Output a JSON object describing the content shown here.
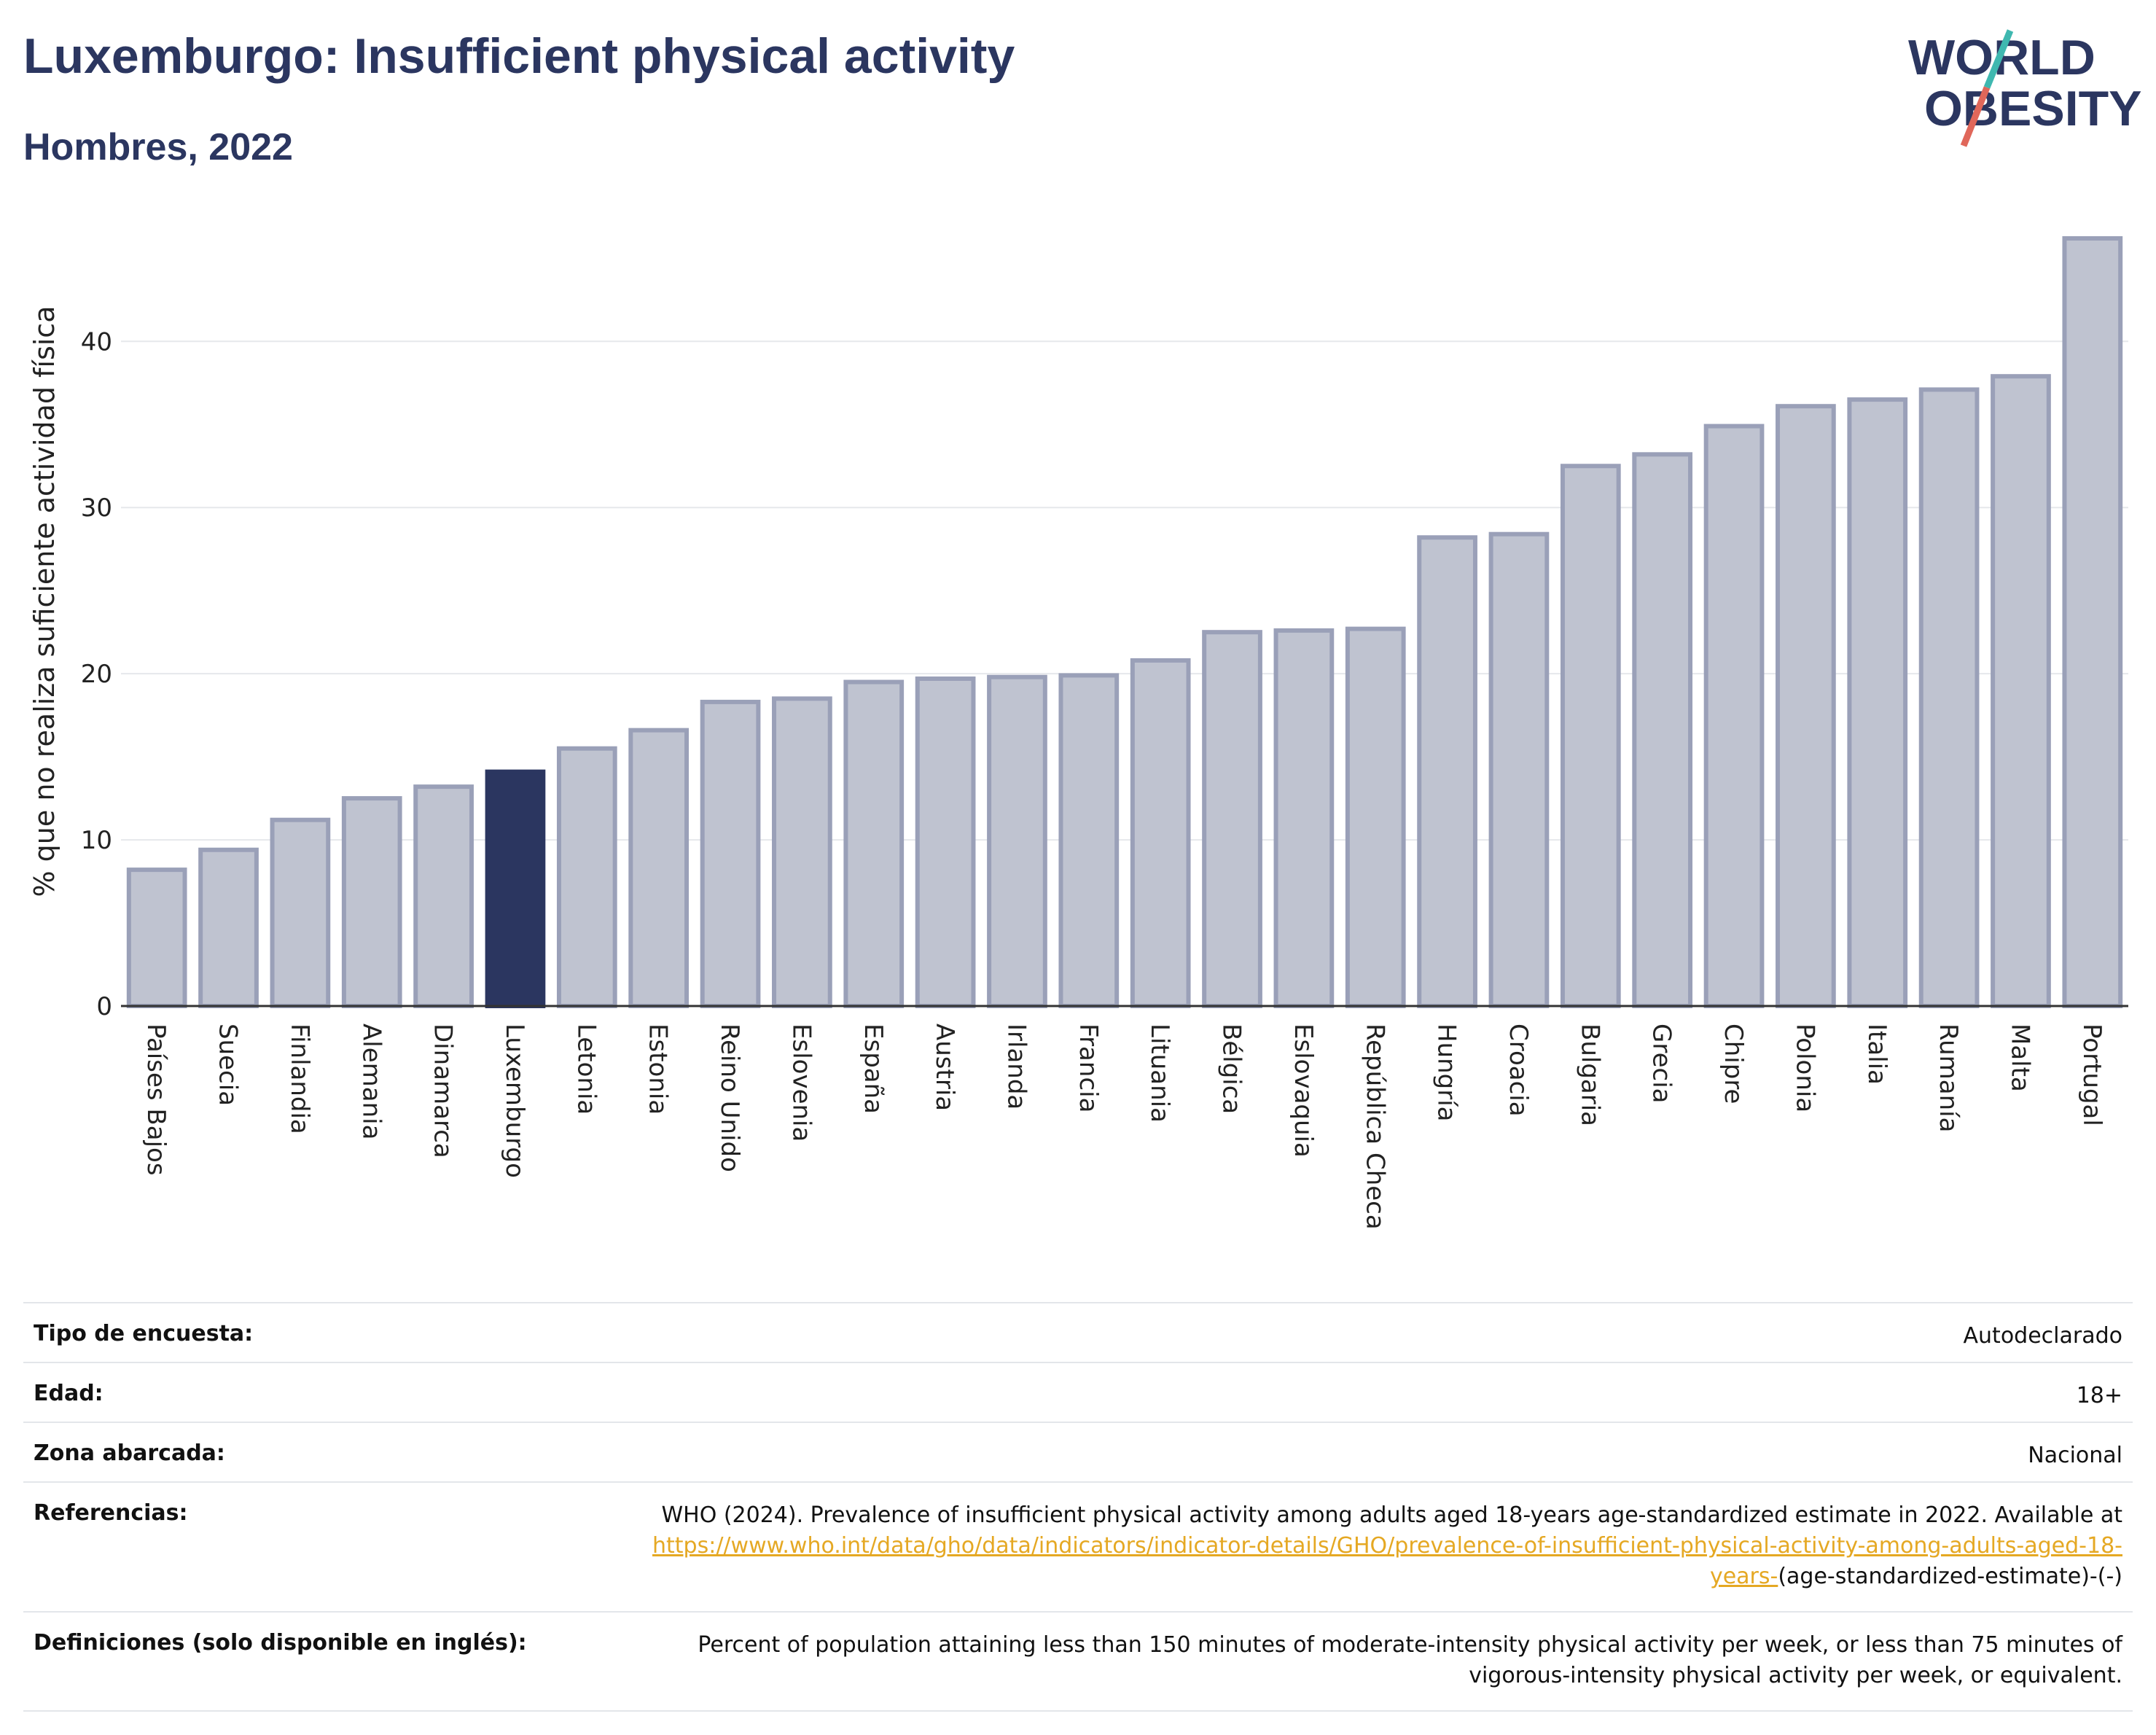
{
  "header": {
    "title": "Luxemburgo: Insufficient physical activity",
    "subtitle": "Hombres, 2022"
  },
  "logo": {
    "line1": "WORLD",
    "line2": "OBESITY",
    "colors": {
      "text": "#2b3660",
      "teal": "#3fb8b0",
      "coral": "#e0675a"
    }
  },
  "chart_data": {
    "type": "bar",
    "title": "Luxemburgo: Insufficient physical activity",
    "subtitle": "Hombres, 2022",
    "xlabel": "",
    "ylabel": "% que no realiza suficiente actividad física",
    "ylim": [
      0,
      46.2
    ],
    "yticks": [
      0,
      10,
      20,
      30,
      40
    ],
    "grid": true,
    "highlight": "Luxemburgo",
    "colors": {
      "default": "#bfc3d0",
      "default_border": "#9aa0b8",
      "highlight": "#2b3660"
    },
    "categories": [
      "Países Bajos",
      "Suecia",
      "Finlandia",
      "Alemania",
      "Dinamarca",
      "Luxemburgo",
      "Letonia",
      "Estonia",
      "Reino Unido",
      "Eslovenia",
      "España",
      "Austria",
      "Irlanda",
      "Francia",
      "Lituania",
      "Bélgica",
      "Eslovaquia",
      "República Checa",
      "Hungría",
      "Croacia",
      "Bulgaria",
      "Grecia",
      "Chipre",
      "Polonia",
      "Italia",
      "Rumanía",
      "Malta",
      "Portugal"
    ],
    "values": [
      8.2,
      9.4,
      11.2,
      12.5,
      13.2,
      14.1,
      15.5,
      16.6,
      18.3,
      18.5,
      19.5,
      19.7,
      19.8,
      19.9,
      20.8,
      22.5,
      22.6,
      22.7,
      28.2,
      28.4,
      32.5,
      33.2,
      34.9,
      36.1,
      36.5,
      37.1,
      37.9,
      46.2
    ]
  },
  "info": {
    "survey": {
      "label": "Tipo de encuesta:",
      "value": "Autodeclarado"
    },
    "age": {
      "label": "Edad:",
      "value": "18+"
    },
    "area": {
      "label": "Zona abarcada:",
      "value": "Nacional"
    },
    "references": {
      "label": "Referencias:",
      "text": "WHO (2024). Prevalence of insufficient physical activity among adults aged 18-years age-standardized estimate in 2022. Available at",
      "link": "https://www.who.int/data/gho/data/indicators/indicator-details/GHO/prevalence-of-insufficient-physical-activity-among-adults-aged-18-years-",
      "suffix": "(age-standardized-estimate)-(-)"
    },
    "definitions": {
      "label": "Definiciones (solo disponible en inglés):",
      "value": "Percent of population attaining less than 150 minutes of moderate-intensity physical activity per week, or less than 75 minutes of vigorous-intensity physical activity per week, or equivalent."
    }
  }
}
